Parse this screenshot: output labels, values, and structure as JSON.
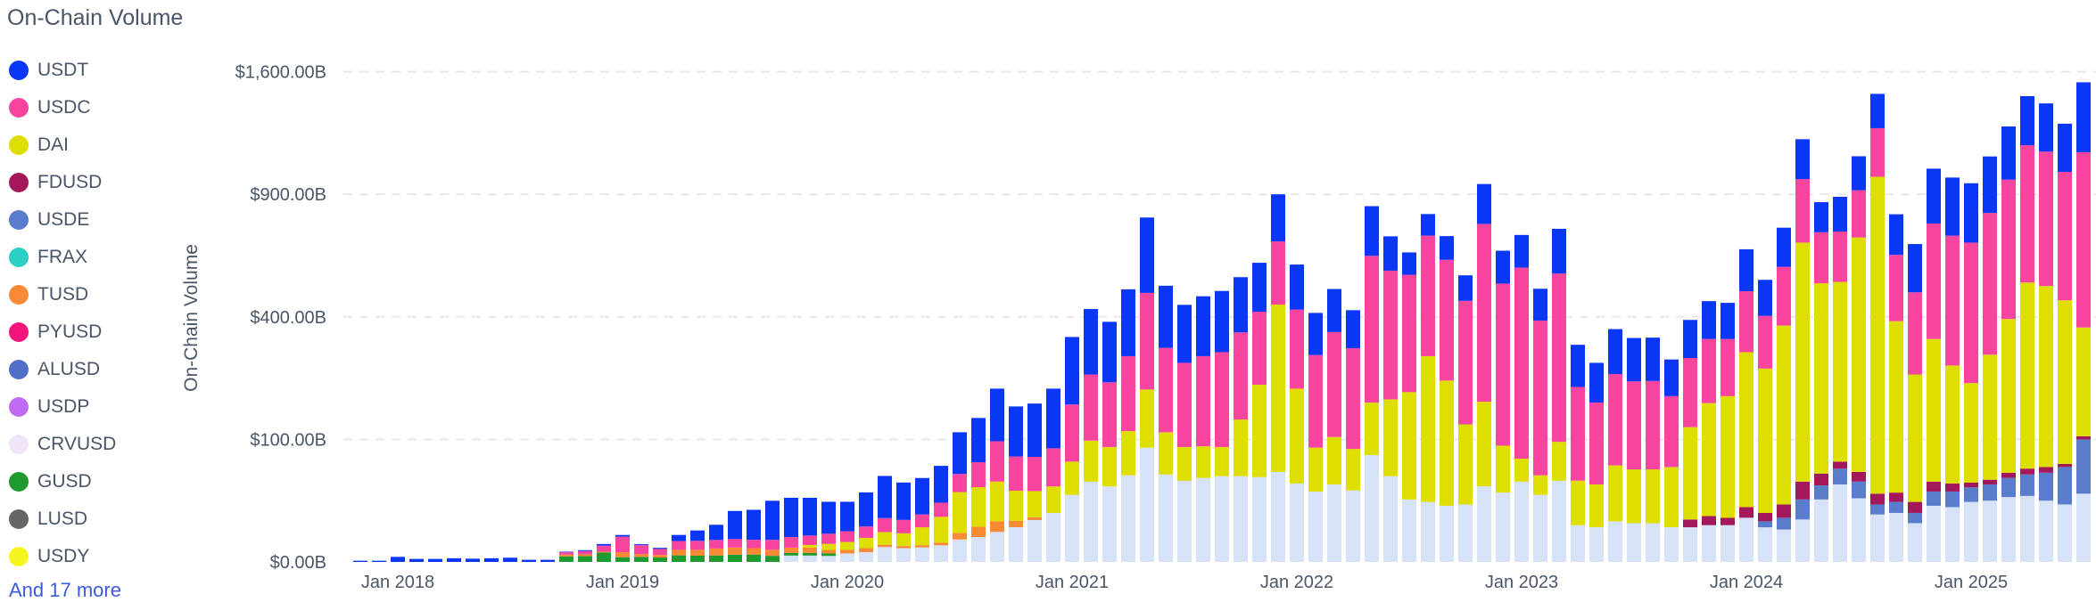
{
  "header": {
    "title": "On-Chain Volume"
  },
  "legend": {
    "items": [
      {
        "label": "USDT",
        "color": "#0a36f5"
      },
      {
        "label": "USDC",
        "color": "#f7449e"
      },
      {
        "label": "DAI",
        "color": "#dede00"
      },
      {
        "label": "FDUSD",
        "color": "#a3185a"
      },
      {
        "label": "USDE",
        "color": "#5a7ccc"
      },
      {
        "label": "FRAX",
        "color": "#2ccfc6"
      },
      {
        "label": "TUSD",
        "color": "#f98a35"
      },
      {
        "label": "PYUSD",
        "color": "#f5137c"
      },
      {
        "label": "ALUSD",
        "color": "#4f6fc8"
      },
      {
        "label": "USDP",
        "color": "#c06cf2"
      },
      {
        "label": "CRVUSD",
        "color": "#efe4f8"
      },
      {
        "label": "GUSD",
        "color": "#1e9a2e"
      },
      {
        "label": "LUSD",
        "color": "#666666"
      },
      {
        "label": "USDY",
        "color": "#f6f51e"
      }
    ],
    "more_label": "And 17 more"
  },
  "chart_data": {
    "type": "bar",
    "stacked": true,
    "y_scale": "sqrt",
    "ylabel": "On-Chain Volume",
    "yticks": [
      0,
      100,
      400,
      900,
      1600
    ],
    "ytick_labels": [
      "$0.00B",
      "$100.00B",
      "$400.00B",
      "$900.00B",
      "$1,600.00B"
    ],
    "ylim": [
      0,
      1600
    ],
    "grid": true,
    "legend_position": "left",
    "xtick_labels": [
      "Jan 2018",
      "Jan 2019",
      "Jan 2020",
      "Jan 2021",
      "Jan 2022",
      "Jan 2023",
      "Jan 2024",
      "Jan 2025"
    ],
    "xtick_months": [
      "2018-01",
      "2019-01",
      "2020-01",
      "2021-01",
      "2022-01",
      "2023-01",
      "2024-01",
      "2025-01"
    ],
    "categories": [
      "2017-11",
      "2017-12",
      "2018-01",
      "2018-02",
      "2018-03",
      "2018-04",
      "2018-05",
      "2018-06",
      "2018-07",
      "2018-08",
      "2018-09",
      "2018-10",
      "2018-11",
      "2018-12",
      "2019-01",
      "2019-02",
      "2019-03",
      "2019-04",
      "2019-05",
      "2019-06",
      "2019-07",
      "2019-08",
      "2019-09",
      "2019-10",
      "2019-11",
      "2019-12",
      "2020-01",
      "2020-02",
      "2020-03",
      "2020-04",
      "2020-05",
      "2020-06",
      "2020-07",
      "2020-08",
      "2020-09",
      "2020-10",
      "2020-11",
      "2020-12",
      "2021-01",
      "2021-02",
      "2021-03",
      "2021-04",
      "2021-05",
      "2021-06",
      "2021-07",
      "2021-08",
      "2021-09",
      "2021-10",
      "2021-11",
      "2021-12",
      "2022-01",
      "2022-02",
      "2022-03",
      "2022-04",
      "2022-05",
      "2022-06",
      "2022-07",
      "2022-08",
      "2022-09",
      "2022-10",
      "2022-11",
      "2022-12",
      "2023-01",
      "2023-02",
      "2023-03",
      "2023-04",
      "2023-05",
      "2023-06",
      "2023-07",
      "2023-08",
      "2023-09",
      "2023-10",
      "2023-11",
      "2023-12",
      "2024-01",
      "2024-02",
      "2024-03",
      "2024-04",
      "2024-05",
      "2024-06",
      "2024-07",
      "2024-08",
      "2024-09",
      "2024-10",
      "2024-11",
      "2024-12",
      "2025-01",
      "2025-02",
      "2025-03",
      "2025-04",
      "2025-05",
      "2025-06",
      "2025-07"
    ],
    "series": [
      {
        "color": "#d6e2f8",
        "values": [
          0,
          0,
          0,
          0,
          0,
          0,
          0,
          0,
          0,
          0,
          0,
          0,
          0,
          0,
          0,
          0,
          0,
          0,
          0,
          0,
          0,
          0,
          0,
          0.27,
          0.27,
          0.24,
          0.48,
          0.64,
          1.48,
          1.26,
          1.41,
          1.85,
          3.36,
          4.14,
          6,
          8.05,
          11.69,
          16,
          30,
          43,
          38,
          50,
          87,
          51,
          44,
          47,
          49,
          49,
          48,
          54,
          41,
          33,
          40,
          34,
          76,
          49,
          26,
          24,
          21,
          22,
          38,
          32,
          43,
          30,
          44,
          9,
          8,
          11,
          10,
          10,
          8,
          8,
          9,
          9,
          13,
          8,
          7,
          12,
          26,
          40,
          27,
          15,
          16,
          10,
          21,
          20,
          24,
          25,
          28,
          29,
          25,
          22,
          31
        ]
      },
      {
        "name": "GUSD",
        "color": "#1e9a2e",
        "values": [
          0,
          0,
          0,
          0,
          0,
          0,
          0,
          0,
          0,
          0,
          0,
          0.21,
          0.23,
          0.6,
          0.15,
          0.17,
          0.13,
          0.29,
          0.26,
          0.28,
          0.35,
          0.36,
          0.25,
          0.27,
          0.27,
          0.24,
          0,
          0,
          0,
          0,
          0,
          0,
          0,
          0,
          0,
          0,
          0,
          0,
          0,
          0,
          0,
          0,
          0,
          0,
          0,
          0,
          0,
          0,
          0,
          0,
          0,
          0,
          0,
          0,
          0,
          0,
          0,
          0,
          0,
          0,
          0,
          0,
          0,
          0,
          0,
          0,
          0,
          0,
          0,
          0,
          0,
          0,
          0,
          0,
          0,
          0,
          0,
          0,
          0,
          0,
          0,
          0,
          0,
          0,
          0,
          0,
          0,
          0,
          0,
          0,
          0,
          0,
          0
        ]
      },
      {
        "name": "TUSD",
        "color": "#f98a35",
        "values": [
          0,
          0,
          0,
          0,
          0,
          0,
          0,
          0,
          0,
          0,
          0,
          0.14,
          0.14,
          0.1,
          0.48,
          0.25,
          0.2,
          0.68,
          0.73,
          0.92,
          1.04,
          0.91,
          0.75,
          0.82,
          0.82,
          0.48,
          0.48,
          0.64,
          0.49,
          0.42,
          0.47,
          0.62,
          2.24,
          4.14,
          5,
          3.22,
          1.67,
          0,
          0,
          0,
          0,
          0,
          0,
          0,
          0,
          0,
          0,
          0,
          0,
          0,
          0,
          0,
          0,
          0,
          0,
          0,
          0,
          0,
          0,
          0,
          0,
          0,
          0,
          0,
          0,
          0,
          0,
          0,
          0,
          0,
          0,
          0,
          0,
          0,
          0,
          0,
          0,
          0,
          0,
          0,
          0,
          0,
          0,
          0,
          0,
          0,
          0,
          0,
          0,
          0,
          0,
          0,
          0
        ]
      },
      {
        "name": "USDE",
        "color": "#5a7ccc",
        "values": [
          0,
          0,
          0,
          0,
          0,
          0,
          0,
          0,
          0,
          0,
          0,
          0,
          0,
          0,
          0,
          0,
          0,
          0,
          0,
          0,
          0,
          0,
          0,
          0,
          0,
          0,
          0,
          0,
          0,
          0,
          0,
          0,
          0,
          0,
          0,
          0,
          0,
          0,
          0,
          0,
          0,
          0,
          0,
          0,
          0,
          0,
          0,
          0,
          0,
          0,
          0,
          0,
          0,
          0,
          0,
          0,
          0,
          0,
          0,
          0,
          0,
          0,
          0,
          0,
          0,
          0,
          0,
          0,
          0,
          0,
          0,
          0,
          0,
          0,
          0,
          3,
          6,
          14,
          13,
          18,
          16,
          7,
          8,
          6,
          12,
          13,
          13,
          15,
          19,
          22,
          28,
          38,
          69
        ]
      },
      {
        "name": "FDUSD",
        "color": "#a3185a",
        "values": [
          0,
          0,
          0,
          0,
          0,
          0,
          0,
          0,
          0,
          0,
          0,
          0,
          0,
          0,
          0,
          0,
          0,
          0,
          0,
          0,
          0,
          0,
          0,
          0,
          0,
          0,
          0,
          0,
          0,
          0,
          0,
          0,
          0,
          0,
          0,
          0,
          0,
          0,
          0,
          0,
          0,
          0,
          0,
          0,
          0,
          0,
          0,
          0,
          0,
          0,
          0,
          0,
          0,
          0,
          0,
          0,
          0,
          0,
          0,
          0,
          0,
          0,
          0,
          0,
          0,
          0,
          0,
          0,
          0,
          0,
          0,
          4,
          5,
          4,
          7,
          5,
          9,
          17,
          13,
          9,
          11,
          9,
          8,
          8,
          10,
          8,
          5,
          5,
          6,
          7,
          7,
          4,
          5
        ]
      },
      {
        "name": "DAI",
        "color": "#dede00",
        "values": [
          0,
          0,
          0,
          0,
          0,
          0,
          0,
          0,
          0,
          0,
          0,
          0,
          0,
          0,
          0,
          0,
          0,
          0,
          0,
          0,
          0,
          0,
          0,
          0,
          0.55,
          1.21,
          1.69,
          2.58,
          3.94,
          3.78,
          6.1,
          11.07,
          26.88,
          28.98,
          32,
          22.54,
          20.04,
          22,
          37,
          55,
          50,
          64,
          111,
          61,
          44,
          42,
          39,
          86,
          161,
          387,
          159,
          54,
          64,
          51,
          93,
          127,
          166,
          258,
          198,
          104,
          133,
          58,
          28,
          20,
          52,
          35,
          32,
          51,
          47,
          47,
          52,
          109,
          154,
          170,
          273,
          233,
          350,
          636,
          465,
          455,
          647,
          957,
          354,
          210,
          288,
          216,
          171,
          241,
          340,
          462,
          447,
          392,
          261
        ]
      },
      {
        "name": "USDC",
        "color": "#f7449e",
        "values": [
          0,
          0,
          0,
          0,
          0,
          0,
          0,
          0,
          0,
          0,
          0,
          0.28,
          0.41,
          1.08,
          3.63,
          1.46,
          0.79,
          1.94,
          1.98,
          2.02,
          2.08,
          1.99,
          2.24,
          2.74,
          2.74,
          3.13,
          3.62,
          4.51,
          6.89,
          6.3,
          7.04,
          9.84,
          19.04,
          28.98,
          54,
          40.25,
          40.08,
          48,
          98,
          136,
          127,
          168,
          284,
          193,
          176,
          193,
          205,
          216,
          208,
          243,
          224,
          198,
          248,
          219,
          455,
          389,
          357,
          427,
          389,
          328,
          590,
          426,
          506,
          338,
          458,
          160,
          129,
          173,
          160,
          161,
          123,
          156,
          163,
          148,
          195,
          154,
          208,
          297,
          207,
          205,
          219,
          265,
          242,
          250,
          432,
          452,
          466,
          525,
          580,
          636,
          614,
          557,
          752
        ]
      },
      {
        "name": "USDT",
        "color": "#0a36f5",
        "values": [
          0.01,
          0.01,
          0.17,
          0.06,
          0.06,
          0.09,
          0.07,
          0.09,
          0.12,
          0.03,
          0.03,
          0.07,
          0.14,
          0.37,
          0.58,
          0.21,
          0.2,
          1.94,
          3.63,
          5.98,
          13.84,
          14.84,
          21.66,
          23.29,
          22.74,
          18.8,
          17.83,
          23.83,
          36.41,
          30.24,
          31.89,
          38.13,
          60.48,
          71.76,
          103,
          86.94,
          93.52,
          114,
          172,
          192,
          169,
          213,
          308,
          203,
          176,
          188,
          196,
          189,
          179,
          216,
          165,
          128,
          144,
          118,
          219,
          141,
          89,
          97,
          99,
          93,
          190,
          129,
          135,
          109,
          185,
          110,
          95,
          126,
          117,
          117,
          90,
          113,
          122,
          116,
          163,
          127,
          164,
          214,
          138,
          161,
          176,
          206,
          177,
          189,
          267,
          275,
          276,
          284,
          290,
          289,
          279,
          266,
          414
        ]
      }
    ]
  }
}
